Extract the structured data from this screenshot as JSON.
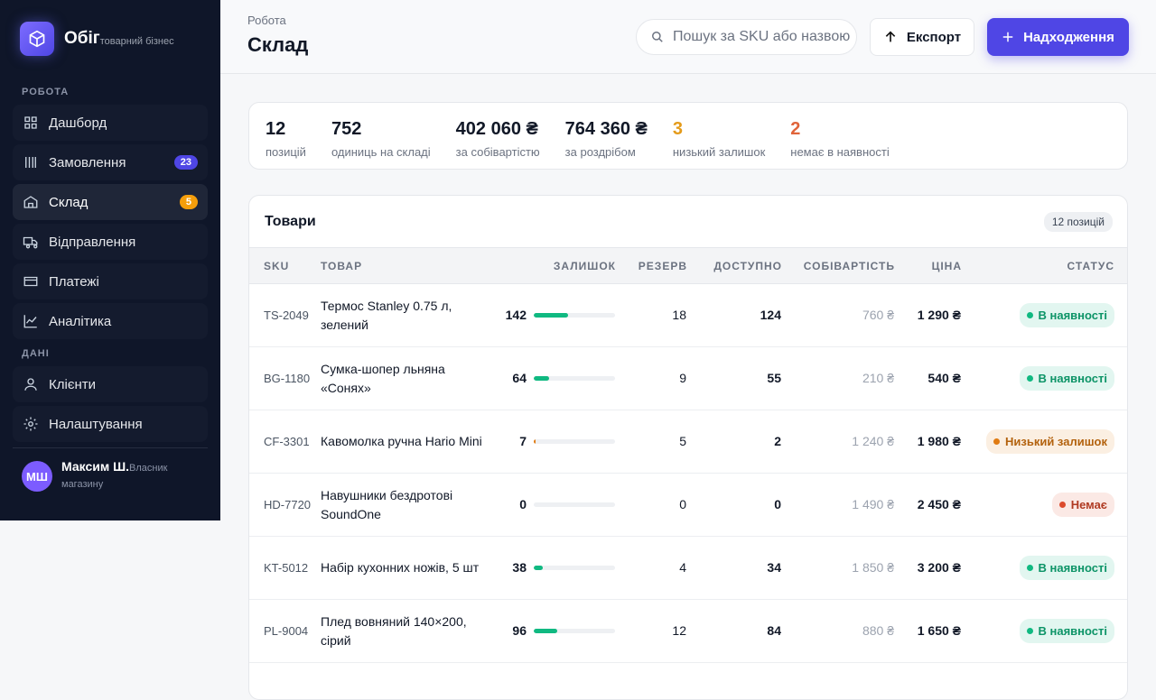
{
  "sidebar": {
    "brand": {
      "name": "Обіг",
      "tagline": "товарний бізнес"
    },
    "sections": [
      {
        "title": "РОБОТА",
        "items": [
          {
            "label": "Дашборд"
          },
          {
            "label": "Замовлення",
            "badge": 23,
            "badge_color": "#4f46e5"
          },
          {
            "label": "Склад",
            "badge": 5,
            "badge_color": "#f59e0b",
            "active": true
          },
          {
            "label": "Відправлення"
          },
          {
            "label": "Платежі"
          },
          {
            "label": "Аналітика"
          }
        ]
      },
      {
        "title": "ДАНІ",
        "items": [
          {
            "label": "Клієнти"
          },
          {
            "label": "Налаштування"
          }
        ]
      }
    ],
    "user": {
      "initials": "МШ",
      "name": "Максим Ш.",
      "role": "Власник магазину"
    }
  },
  "header": {
    "breadcrumb": "Робота",
    "title": "Склад",
    "search_placeholder": "Пошук за SKU або назвою",
    "export_button": "Експорт",
    "primary_button": "Надходження"
  },
  "stats": [
    {
      "value": 12,
      "label": "позицій"
    },
    {
      "value": 752,
      "label": "одиниць на складі"
    },
    {
      "value": "402 060 ₴",
      "label": "за собівартістю"
    },
    {
      "value": "764 360 ₴",
      "label": "за роздрібом"
    },
    {
      "value": 3,
      "label": "низький залишок",
      "color": "#e49b1a"
    },
    {
      "value": 2,
      "label": "немає в наявності",
      "color": "#e0643a"
    }
  ],
  "table": {
    "title": "Товари",
    "count": "12 позицій",
    "columns": [
      "SKU",
      "ТОВАР",
      "ЗАЛИШОК",
      "РЕЗЕРВ",
      "ДОСТУПНО",
      "СОБІВАРТІСТЬ",
      "ЦІНА",
      "СТАТУС"
    ],
    "rows": [
      {
        "sku": "TS-2049",
        "name": "Термос Stanley 0.75 л, зелений",
        "stock": 142,
        "reserve": 18,
        "available": 124,
        "cost": "760 ₴",
        "price": "1 290 ₴",
        "status": "В наявності",
        "color": "#10b981"
      },
      {
        "sku": "BG-1180",
        "name": "Сумка-шопер льняна «Сонях»",
        "stock": 64,
        "reserve": 9,
        "available": 55,
        "cost": "210 ₴",
        "price": "540 ₴",
        "status": "В наявності",
        "color": "#10b981"
      },
      {
        "sku": "CF-3301",
        "name": "Кавомолка ручна Hario Mini",
        "stock": 7,
        "reserve": 5,
        "available": 2,
        "cost": "1 240 ₴",
        "price": "1 980 ₴",
        "status": "Низький залишок",
        "color": "#e07b12"
      },
      {
        "sku": "HD-7720",
        "name": "Навушники бездротові SoundOne",
        "stock": 0,
        "reserve": 0,
        "available": 0,
        "cost": "1 490 ₴",
        "price": "2 450 ₴",
        "status": "Немає",
        "color": "#dc4a2c"
      },
      {
        "sku": "KT-5012",
        "name": "Набір кухонних ножів, 5 шт",
        "stock": 38,
        "reserve": 4,
        "available": 34,
        "cost": "1 850 ₴",
        "price": "3 200 ₴",
        "status": "В наявності",
        "color": "#10b981"
      },
      {
        "sku": "PL-9004",
        "name": "Плед вовняний 140×200, сірий",
        "stock": 96,
        "reserve": 12,
        "available": 84,
        "cost": "880 ₴",
        "price": "1 650 ₴",
        "status": "В наявності",
        "color": "#10b981"
      }
    ]
  }
}
